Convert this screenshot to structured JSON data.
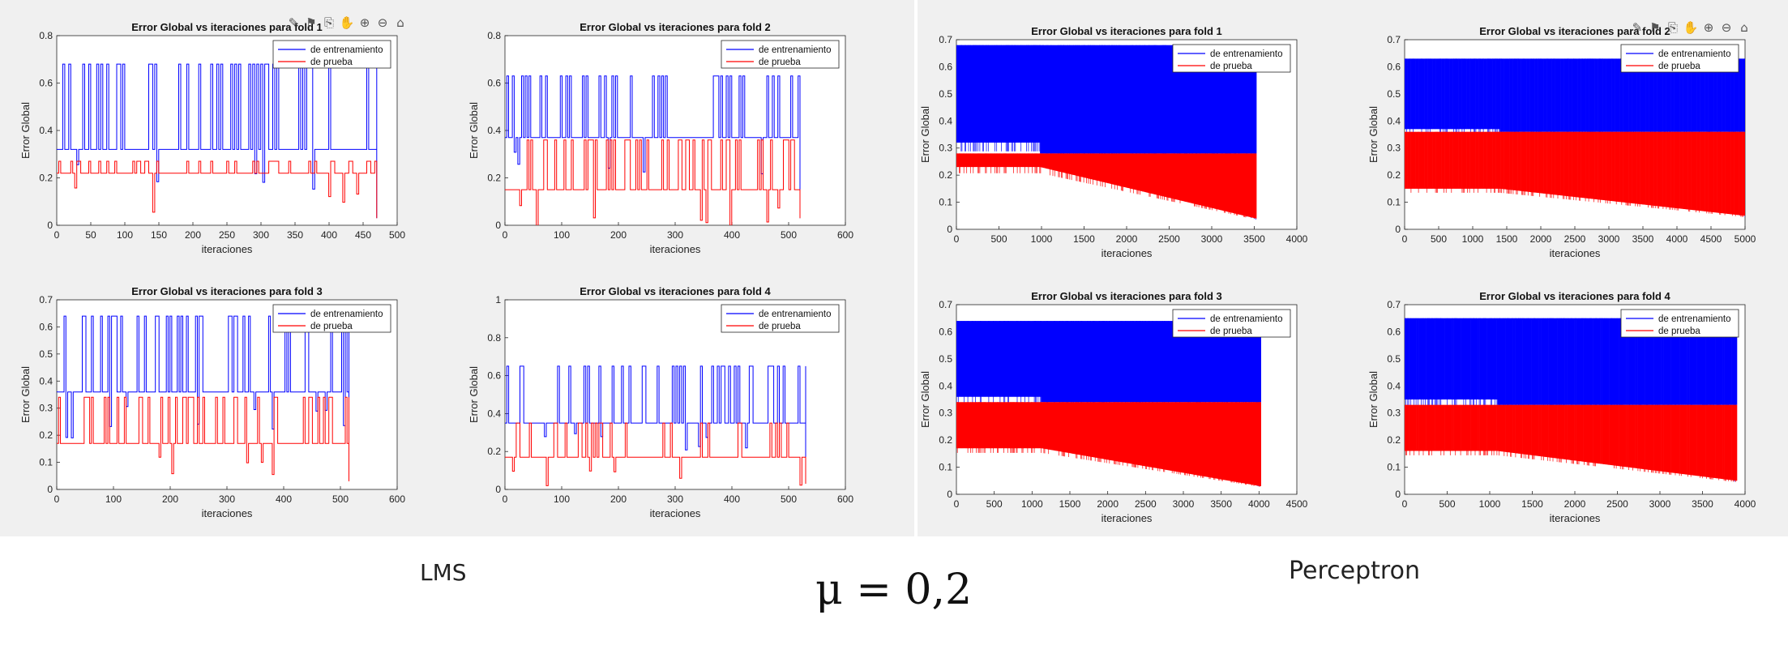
{
  "captions": {
    "left": "LMS",
    "right": "Perceptron",
    "formula": "μ = 0,2"
  },
  "colors": {
    "train": "#0000ff",
    "test": "#ff0000",
    "panel": "#f0f0f0"
  },
  "toolbar_icons": [
    "brush-icon",
    "tag-icon",
    "export-icon",
    "pan-icon",
    "zoom-in-icon",
    "zoom-out-icon",
    "home-icon"
  ],
  "chart_data": [
    {
      "type": "line",
      "group": "LMS",
      "title": "Error Global vs iteraciones para  fold 1",
      "xlabel": "iteraciones",
      "ylabel": "Error Global",
      "xlim": [
        0,
        500
      ],
      "ylim": [
        0,
        0.8
      ],
      "xticks": [
        0,
        50,
        100,
        150,
        200,
        250,
        300,
        350,
        400,
        450,
        500
      ],
      "yticks": [
        0,
        0.2,
        0.4,
        0.6,
        0.8
      ],
      "legend_position": "top-right",
      "x_end": 470,
      "series": [
        {
          "name": "de entrenamiento",
          "base": 0.32,
          "peak": 0.68
        },
        {
          "name": "de prueba",
          "base": 0.22,
          "peak": 0.27
        }
      ]
    },
    {
      "type": "line",
      "group": "LMS",
      "title": "Error Global vs iteraciones para  fold 2",
      "xlabel": "iteraciones",
      "ylabel": "Error Global",
      "xlim": [
        0,
        600
      ],
      "ylim": [
        0,
        0.8
      ],
      "xticks": [
        0,
        100,
        200,
        300,
        400,
        500,
        600
      ],
      "yticks": [
        0,
        0.2,
        0.4,
        0.6,
        0.8
      ],
      "legend_position": "top-right",
      "x_end": 520,
      "series": [
        {
          "name": "de entrenamiento",
          "base": 0.37,
          "peak": 0.63
        },
        {
          "name": "de prueba",
          "base": 0.15,
          "peak": 0.36
        }
      ]
    },
    {
      "type": "line",
      "group": "Perceptron",
      "title": "Error Global vs iteraciones para  fold 1",
      "xlabel": "iteraciones",
      "ylabel": "Error Global",
      "xlim": [
        0,
        4000
      ],
      "ylim": [
        0,
        0.7
      ],
      "xticks": [
        0,
        500,
        1000,
        1500,
        2000,
        2500,
        3000,
        3500,
        4000
      ],
      "yticks": [
        0,
        0.1,
        0.2,
        0.3,
        0.4,
        0.5,
        0.6,
        0.7
      ],
      "legend_position": "top-right",
      "x_end": 3520,
      "series": [
        {
          "name": "de entrenamiento",
          "base": 0.32,
          "peak": 0.68,
          "final": 0.04
        },
        {
          "name": "de prueba",
          "base": 0.23,
          "peak": 0.28,
          "final": 0.04
        }
      ]
    },
    {
      "type": "line",
      "group": "Perceptron",
      "title": "Error Global vs iteraciones para  fold 2",
      "xlabel": "iteraciones",
      "ylabel": "Error Global",
      "xlim": [
        0,
        5000
      ],
      "ylim": [
        0,
        0.7
      ],
      "xticks": [
        0,
        500,
        1000,
        1500,
        2000,
        2500,
        3000,
        3500,
        4000,
        4500,
        5000
      ],
      "yticks": [
        0,
        0.1,
        0.2,
        0.3,
        0.4,
        0.5,
        0.6,
        0.7
      ],
      "legend_position": "top-right",
      "x_end": 5000,
      "series": [
        {
          "name": "de entrenamiento",
          "base": 0.37,
          "peak": 0.63,
          "final": 0.05
        },
        {
          "name": "de prueba",
          "base": 0.15,
          "peak": 0.36,
          "final": 0.05
        }
      ]
    },
    {
      "type": "line",
      "group": "LMS",
      "title": "Error Global vs iteraciones para  fold 3",
      "xlabel": "iteraciones",
      "ylabel": "Error Global",
      "xlim": [
        0,
        600
      ],
      "ylim": [
        0,
        0.7
      ],
      "xticks": [
        0,
        100,
        200,
        300,
        400,
        500,
        600
      ],
      "yticks": [
        0,
        0.1,
        0.2,
        0.3,
        0.4,
        0.5,
        0.6,
        0.7
      ],
      "legend_position": "top-right",
      "x_end": 515,
      "series": [
        {
          "name": "de entrenamiento",
          "base": 0.36,
          "peak": 0.64
        },
        {
          "name": "de prueba",
          "base": 0.17,
          "peak": 0.34
        }
      ]
    },
    {
      "type": "line",
      "group": "LMS",
      "title": "Error Global vs iteraciones para  fold 4",
      "xlabel": "iteraciones",
      "ylabel": "Error Global",
      "xlim": [
        0,
        600
      ],
      "ylim": [
        0,
        1
      ],
      "xticks": [
        0,
        100,
        200,
        300,
        400,
        500,
        600
      ],
      "yticks": [
        0,
        0.2,
        0.4,
        0.6,
        0.8,
        1
      ],
      "legend_position": "top-right",
      "x_end": 530,
      "series": [
        {
          "name": "de entrenamiento",
          "base": 0.35,
          "peak": 0.65
        },
        {
          "name": "de prueba",
          "base": 0.17,
          "peak": 0.35
        }
      ]
    },
    {
      "type": "line",
      "group": "Perceptron",
      "title": "Error Global vs iteraciones para  fold 3",
      "xlabel": "iteraciones",
      "ylabel": "Error Global",
      "xlim": [
        0,
        4500
      ],
      "ylim": [
        0,
        0.7
      ],
      "xticks": [
        0,
        500,
        1000,
        1500,
        2000,
        2500,
        3000,
        3500,
        4000,
        4500
      ],
      "yticks": [
        0,
        0.1,
        0.2,
        0.3,
        0.4,
        0.5,
        0.6,
        0.7
      ],
      "legend_position": "top-right",
      "x_end": 4020,
      "series": [
        {
          "name": "de entrenamiento",
          "base": 0.36,
          "peak": 0.64,
          "final": 0.03
        },
        {
          "name": "de prueba",
          "base": 0.17,
          "peak": 0.34,
          "final": 0.03
        }
      ]
    },
    {
      "type": "line",
      "group": "Perceptron",
      "title": "Error Global vs iteraciones para  fold 4",
      "xlabel": "iteraciones",
      "ylabel": "Error Global",
      "xlim": [
        0,
        4000
      ],
      "ylim": [
        0,
        0.7
      ],
      "xticks": [
        0,
        500,
        1000,
        1500,
        2000,
        2500,
        3000,
        3500,
        4000
      ],
      "yticks": [
        0,
        0.1,
        0.2,
        0.3,
        0.4,
        0.5,
        0.6,
        0.7
      ],
      "legend_position": "top-right",
      "x_end": 3900,
      "series": [
        {
          "name": "de entrenamiento",
          "base": 0.35,
          "peak": 0.65,
          "final": 0.05
        },
        {
          "name": "de prueba",
          "base": 0.16,
          "peak": 0.33,
          "final": 0.05
        }
      ]
    }
  ]
}
